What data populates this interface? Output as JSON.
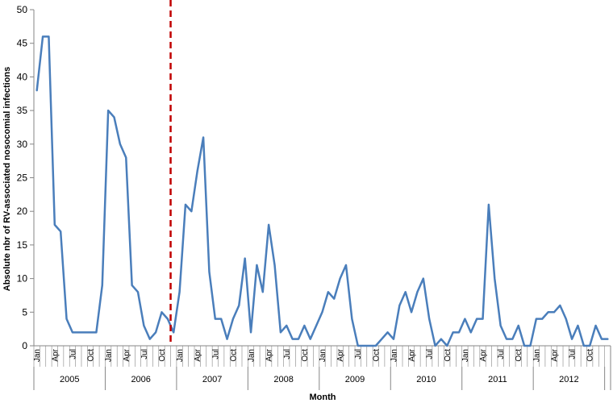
{
  "chart_data": {
    "type": "line",
    "title": "",
    "xlabel": "Month",
    "ylabel": "Absolute nbr of RV-associated nosocomial infections",
    "ylim": [
      0,
      50
    ],
    "yticks": [
      0,
      5,
      10,
      15,
      20,
      25,
      30,
      35,
      40,
      45,
      50
    ],
    "grid": false,
    "years": [
      "2005",
      "2006",
      "2007",
      "2008",
      "2009",
      "2010",
      "2011",
      "2012"
    ],
    "month_tick_labels": [
      "Jan",
      "Apr",
      "Jul",
      "Oct"
    ],
    "series": [
      {
        "color": "#4a7ebb",
        "values": [
          38,
          46,
          46,
          18,
          17,
          4,
          2,
          2,
          2,
          2,
          2,
          9,
          35,
          34,
          30,
          28,
          9,
          8,
          3,
          1,
          2,
          5,
          4,
          2,
          8,
          21,
          20,
          26,
          31,
          11,
          4,
          4,
          1,
          4,
          6,
          13,
          2,
          12,
          8,
          18,
          12,
          2,
          3,
          1,
          1,
          3,
          1,
          3,
          5,
          8,
          7,
          10,
          12,
          4,
          0,
          0,
          0,
          0,
          1,
          2,
          1,
          6,
          8,
          5,
          8,
          10,
          4,
          0,
          1,
          0,
          2,
          2,
          4,
          2,
          4,
          4,
          21,
          10,
          3,
          1,
          1,
          3,
          0,
          0,
          4,
          4,
          5,
          5,
          6,
          4,
          1,
          3,
          0,
          0,
          3,
          1,
          1
        ]
      }
    ],
    "annotations": [
      {
        "type": "vertical-dashed-line",
        "color": "#c00000",
        "after_month_index": 22.5
      }
    ]
  }
}
